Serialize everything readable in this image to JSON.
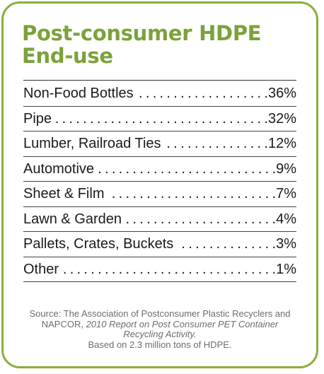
{
  "title_line1": "Post-consumer HDPE",
  "title_line2": "End-use",
  "rows": [
    {
      "label": "Non-Food Bottles",
      "value": ".36%"
    },
    {
      "label": "Pipe",
      "value": ".32%"
    },
    {
      "label": "Lumber, Railroad Ties",
      "value": ".12%"
    },
    {
      "label": "Automotive",
      "value": ".9%"
    },
    {
      "label": "Sheet & Film",
      "value": ".7%"
    },
    {
      "label": "Lawn & Garden",
      "value": ".4%"
    },
    {
      "label": "Pallets, Crates, Buckets",
      "value": ".3%"
    },
    {
      "label": "Other",
      "value": ".1%"
    }
  ],
  "source": {
    "prefix": "Source: The Association of Postconsumer Plastic Recyclers and NAPCOR, ",
    "report": "2010 Report on Post Consumer PET Container Recycling Activity.",
    "suffix": "Based on 2.3 million tons of HDPE."
  },
  "colors": {
    "accent": "#7ba23a",
    "border": "#8cae3b"
  }
}
